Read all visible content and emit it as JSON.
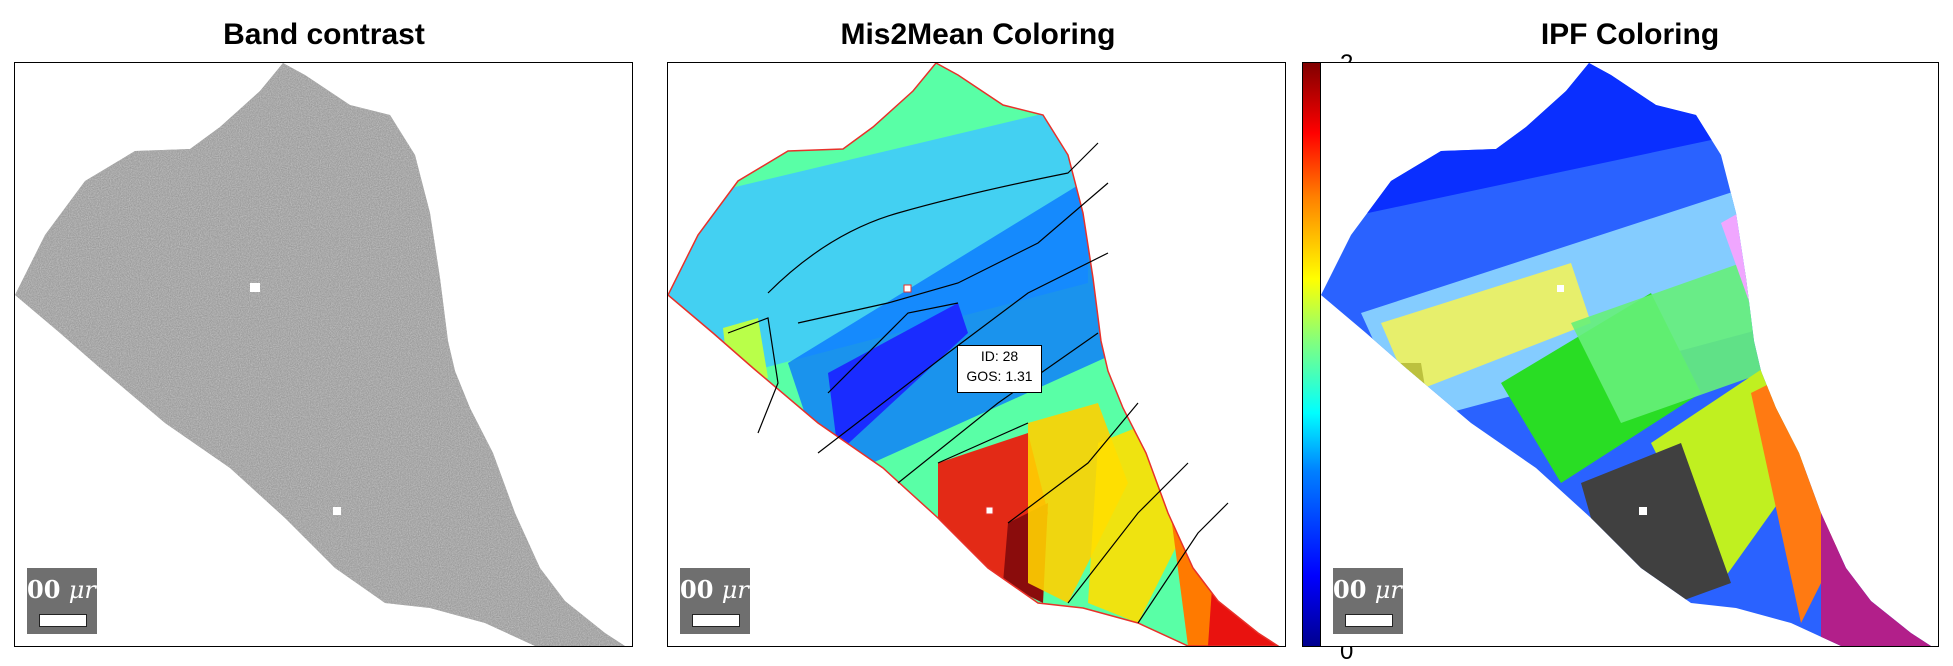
{
  "panels": {
    "band": {
      "title": "Band contrast"
    },
    "mis2mean": {
      "title": "Mis2Mean Coloring"
    },
    "ipf": {
      "title": "IPF Coloring"
    }
  },
  "scalebar": {
    "label_prefix": "00 ",
    "label_unit": "μr"
  },
  "datatip": {
    "id_line": "ID: 28",
    "gos_line": "GOS: 1.31"
  },
  "colorbar": {
    "max_label": "2",
    "min_label": "0"
  },
  "colors": {
    "band_gray": "#8c8c8c",
    "outline_red": "#e8312a",
    "grain_boundary": "#000000"
  }
}
